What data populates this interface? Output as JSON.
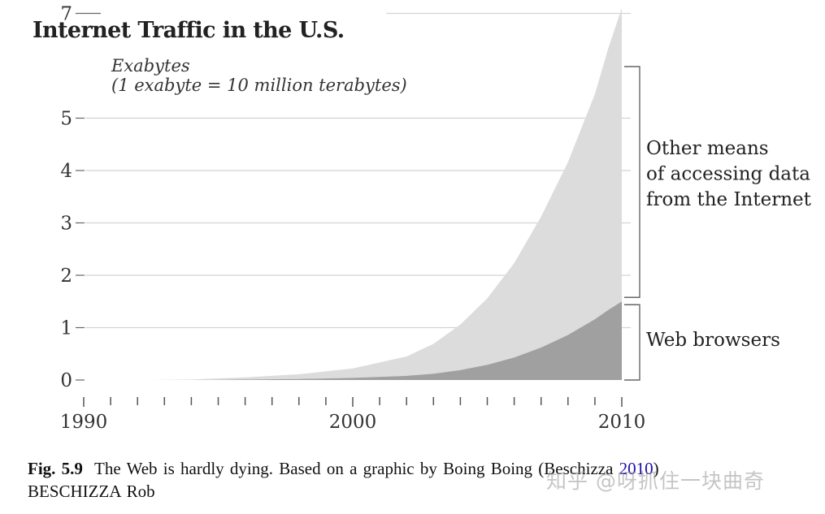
{
  "chart_data": {
    "type": "area",
    "title": "Internet Traffic in the U.S.",
    "unit_label_line1": "Exabytes",
    "unit_label_line2": "(1 exabyte = 10 million terabytes)",
    "xlim": [
      1990,
      2010
    ],
    "ylim": [
      0,
      7
    ],
    "yticks": [
      0,
      1,
      2,
      3,
      4,
      5,
      7
    ],
    "xticks_major": [
      1990,
      2000,
      2010
    ],
    "xticks_minor": [
      1991,
      1992,
      1993,
      1994,
      1995,
      1996,
      1997,
      1998,
      1999,
      2001,
      2002,
      2003,
      2004,
      2005,
      2006,
      2007,
      2008,
      2009
    ],
    "grid": true,
    "stacked": true,
    "x": [
      1992.5,
      1994,
      1996,
      1998,
      2000,
      2002,
      2003,
      2004,
      2005,
      2006,
      2007,
      2008,
      2009,
      2009.5,
      2010
    ],
    "series": [
      {
        "name": "Web browsers",
        "color": "#a0a0a0",
        "values": [
          0.0,
          0.0,
          0.01,
          0.02,
          0.04,
          0.08,
          0.12,
          0.19,
          0.29,
          0.43,
          0.62,
          0.86,
          1.16,
          1.34,
          1.5
        ]
      },
      {
        "name": "Other means of accessing data from the Internet",
        "color": "#dcdcdc",
        "values": [
          0.0,
          0.01,
          0.04,
          0.09,
          0.18,
          0.37,
          0.57,
          0.87,
          1.27,
          1.8,
          2.5,
          3.3,
          4.3,
          5.0,
          5.6
        ]
      }
    ],
    "annotations": [
      {
        "label_lines": [
          "Other means",
          "of accessing data",
          "from the Internet"
        ],
        "range": [
          1.5,
          7.1
        ]
      },
      {
        "label_lines": [
          "Web browsers"
        ],
        "range": [
          0,
          1.5
        ]
      }
    ]
  },
  "caption": {
    "fig_label": "Fig. 5.9",
    "text_before": "The Web is hardly dying. Based on a graphic by Boing Boing (Beschizza ",
    "year_link": "2010",
    "text_after": ")",
    "line2": "BESCHIZZA Rob"
  },
  "watermark": "知乎 @呀抓住一块曲奇"
}
